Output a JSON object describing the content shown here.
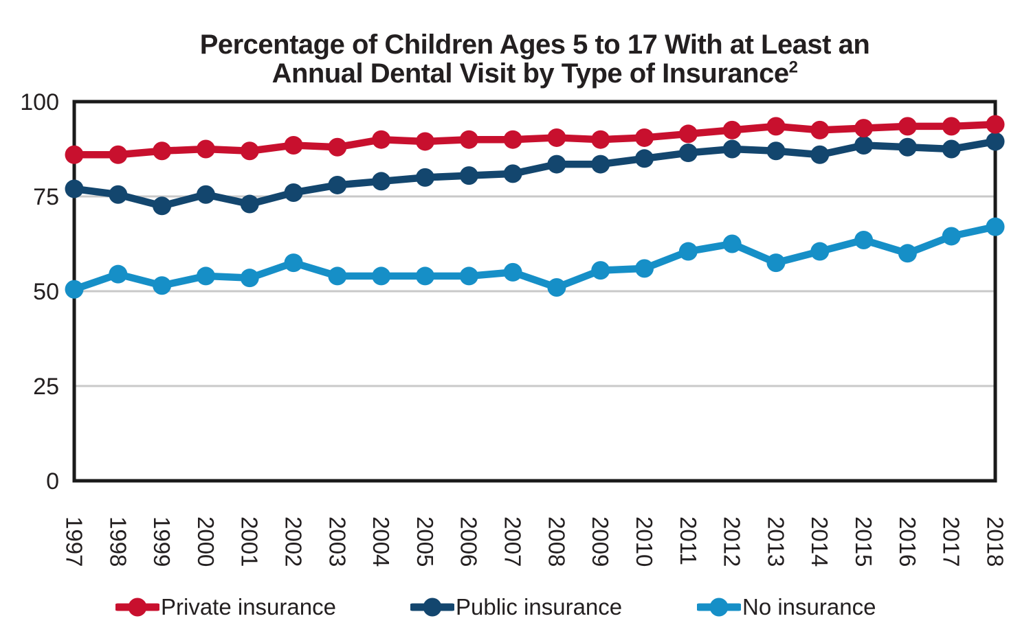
{
  "chart_data": {
    "type": "line",
    "title": "Percentage of Children Ages 5 to 17 With at Least an Annual Dental Visit by Type of Insurance2",
    "title_line1": "Percentage of Children Ages 5 to 17 With at Least an",
    "title_line2": "Annual Dental Visit by Type of Insurance",
    "title_footnote_mark": "2",
    "categories": [
      "1997",
      "1998",
      "1999",
      "2000",
      "2001",
      "2002",
      "2003",
      "2004",
      "2005",
      "2006",
      "2007",
      "2008",
      "2009",
      "2010",
      "2011",
      "2012",
      "2013",
      "2014",
      "2015",
      "2016",
      "2017",
      "2018"
    ],
    "series": [
      {
        "name": "Private insurance",
        "color": "#C8102E",
        "values": [
          86,
          86,
          87,
          87.5,
          87,
          88.5,
          88,
          90,
          89.5,
          90,
          90,
          90.5,
          90,
          90.5,
          91.5,
          92.5,
          93.5,
          92.5,
          93,
          93.5,
          93.5,
          94
        ]
      },
      {
        "name": "Public insurance",
        "color": "#13466E",
        "values": [
          77,
          75.5,
          72.5,
          75.5,
          73,
          76,
          78,
          79,
          80,
          80.5,
          81,
          83.5,
          83.5,
          85,
          86.5,
          87.5,
          87,
          86,
          88.5,
          88,
          87.5,
          89.5
        ]
      },
      {
        "name": "No insurance",
        "color": "#168FC7",
        "values": [
          50.5,
          54.5,
          51.5,
          54,
          53.5,
          57.5,
          54,
          54,
          54,
          54,
          55,
          51,
          55.5,
          56,
          60.5,
          62.5,
          57.5,
          60.5,
          63.5,
          60,
          64.5,
          67
        ]
      }
    ],
    "ylim": [
      0,
      100
    ],
    "yticks": [
      0,
      25,
      50,
      75,
      100
    ],
    "grid": "horizontal-at-25-50-75",
    "legend_position": "bottom",
    "axis_color": "#1A1A1A",
    "gridline_color": "#C9C9C9",
    "text_color": "#231F20"
  }
}
